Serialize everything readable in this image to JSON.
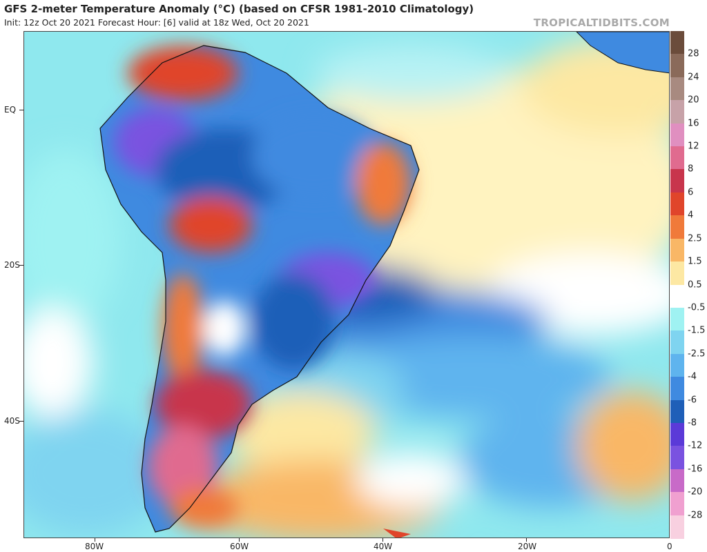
{
  "header": {
    "title": "GFS 2-meter Temperature Anomaly (°C) (based on CFSR 1981-2010 Climatology)",
    "subtitle": "Init: 12z Oct 20 2021   Forecast Hour: [6]   valid at 18z Wed, Oct 20 2021",
    "brand": "TROPICALTIDBITS.COM"
  },
  "map": {
    "region": "South America and South Atlantic",
    "lat_labels": [
      "EQ",
      "20S",
      "40S"
    ],
    "lon_labels": [
      "80W",
      "60W",
      "40W",
      "20W",
      "0"
    ]
  },
  "colorbar": {
    "labels": [
      "28",
      "24",
      "20",
      "16",
      "12",
      "8",
      "6",
      "4",
      "2.5",
      "1.5",
      "0.5",
      "-0.5",
      "-1.5",
      "-2.5",
      "-4",
      "-6",
      "-8",
      "-12",
      "-16",
      "-20",
      "-28"
    ],
    "colors": [
      "#6b4c3b",
      "#8a6a5a",
      "#a88a80",
      "#c7a2a8",
      "#e08fc0",
      "#e06b8f",
      "#c8354c",
      "#e0452b",
      "#f07a3a",
      "#f9b766",
      "#fde8a3",
      "#ffffff",
      "#9ff2f2",
      "#7fd4f0",
      "#5fb4ee",
      "#3f8ae0",
      "#1f5fb8",
      "#5b3ad8",
      "#7a52e0",
      "#c86ac8",
      "#f0a0d0",
      "#f8d0e0"
    ]
  }
}
